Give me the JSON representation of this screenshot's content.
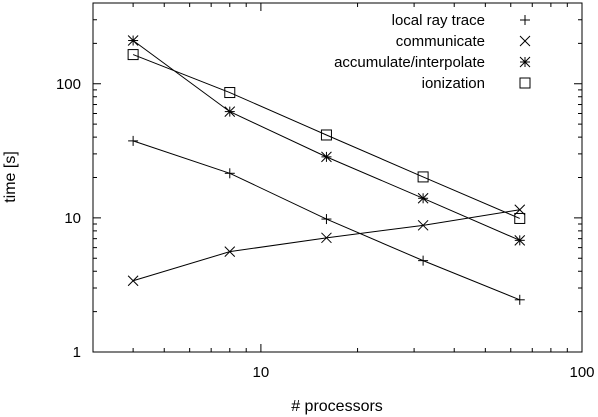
{
  "chart_data": {
    "type": "line",
    "xlabel": "# processors",
    "ylabel": "time [s]",
    "xscale": "log",
    "yscale": "log",
    "xlim": [
      3,
      100
    ],
    "ylim": [
      1,
      400
    ],
    "grid": false,
    "legend_position": "top-right",
    "x_ticks": [
      {
        "value": 10,
        "label": "10"
      },
      {
        "value": 100,
        "label": "100"
      }
    ],
    "y_ticks": [
      {
        "value": 1,
        "label": "1"
      },
      {
        "value": 10,
        "label": "10"
      },
      {
        "value": 100,
        "label": "100"
      }
    ],
    "x": [
      4,
      8,
      16,
      32,
      64
    ],
    "series": [
      {
        "name": "local ray trace",
        "marker": "plus",
        "values": [
          37.5,
          21.5,
          9.8,
          4.8,
          2.45
        ]
      },
      {
        "name": "communicate",
        "marker": "cross",
        "values": [
          3.4,
          5.6,
          7.1,
          8.8,
          11.5
        ]
      },
      {
        "name": "accumulate/interpolate",
        "marker": "star",
        "values": [
          210,
          62,
          28.5,
          14,
          6.8
        ]
      },
      {
        "name": "ionization",
        "marker": "square",
        "values": [
          165,
          86,
          41.5,
          20.2,
          9.9
        ]
      }
    ]
  }
}
